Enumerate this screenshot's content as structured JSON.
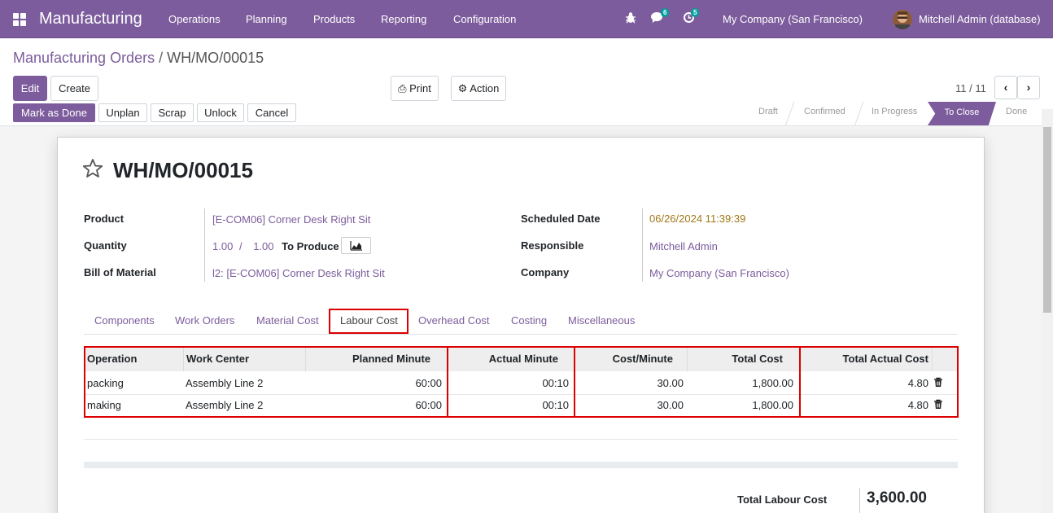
{
  "navbar": {
    "brand": "Manufacturing",
    "menus": [
      "Operations",
      "Planning",
      "Products",
      "Reporting",
      "Configuration"
    ],
    "messages_count": "6",
    "activity_count": "5",
    "company": "My Company (San Francisco)",
    "user": "Mitchell Admin (database)"
  },
  "breadcrumb": {
    "parent": "Manufacturing Orders",
    "separator": "/",
    "current": "WH/MO/00015"
  },
  "toolbar": {
    "edit": "Edit",
    "create": "Create",
    "print": "Print",
    "action": "Action",
    "pager": "11 / 11"
  },
  "status_buttons": [
    "Mark as Done",
    "Unplan",
    "Scrap",
    "Unlock",
    "Cancel"
  ],
  "stages": [
    "Draft",
    "Confirmed",
    "In Progress",
    "To Close",
    "Done"
  ],
  "record": {
    "name": "WH/MO/00015",
    "product_label": "Product",
    "product": "[E-COM06] Corner Desk Right Sit",
    "quantity_label": "Quantity",
    "qty": "1.00",
    "qty_sep": "/",
    "qty_target": "1.00",
    "to_produce": "To Produce",
    "bom_label": "Bill of Material",
    "bom": "l2: [E-COM06] Corner Desk Right Sit",
    "date_label": "Scheduled Date",
    "date": "06/26/2024 11:39:39",
    "resp_label": "Responsible",
    "resp": "Mitchell Admin",
    "company_label": "Company",
    "company": "My Company (San Francisco)"
  },
  "tabs": [
    "Components",
    "Work Orders",
    "Material Cost",
    "Labour Cost",
    "Overhead Cost",
    "Costing",
    "Miscellaneous"
  ],
  "active_tab": "Labour Cost",
  "table": {
    "headers": [
      "Operation",
      "Work Center",
      "Planned Minute",
      "Actual Minute",
      "Cost/Minute",
      "Total Cost",
      "Total Actual Cost"
    ],
    "rows": [
      [
        "packing",
        "Assembly Line 2",
        "60:00",
        "00:10",
        "30.00",
        "1,800.00",
        "4.80"
      ],
      [
        "making",
        "Assembly Line 2",
        "60:00",
        "00:10",
        "30.00",
        "1,800.00",
        "4.80"
      ]
    ]
  },
  "totals": {
    "label": "Total Labour Cost",
    "value": "3,600.00"
  },
  "colors": {
    "brand": "#7c5c9c",
    "highlight": "#dd0000",
    "date": "#a07818"
  }
}
